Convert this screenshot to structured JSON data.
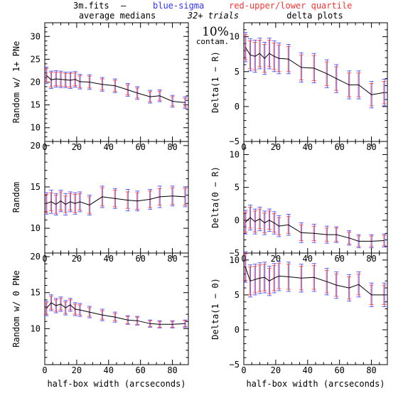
{
  "header": {
    "file": "3m.fits",
    "dash": "—",
    "legend_blue": "blue-sigma",
    "legend_red": "red-upper/lower quartile",
    "left_title": "average medians",
    "trials": "32+ trials",
    "right_title": "delta plots",
    "contam_pct": "10%",
    "contam_word": "contam."
  },
  "colors": {
    "line": "#000000",
    "blue": "#3333ff",
    "red": "#ff3333",
    "axis": "#000000"
  },
  "chart_data": [
    {
      "id": "left-top",
      "type": "line",
      "ylabel": "Random w/ 1+ PNe",
      "xlabel": "",
      "xlim": [
        0,
        90
      ],
      "ylim": [
        7,
        33
      ],
      "yticks": [
        10,
        15,
        20,
        25,
        30
      ],
      "xticks": [
        0,
        20,
        40,
        60,
        80
      ],
      "show_xtick_labels": true,
      "x": [
        1,
        4,
        7,
        10,
        13,
        16,
        19,
        22,
        28,
        36,
        44,
        52,
        58,
        66,
        72,
        80,
        88
      ],
      "y": [
        21.5,
        20.5,
        20.7,
        20.6,
        20.5,
        20.4,
        20.6,
        20.1,
        20.0,
        19.5,
        19.2,
        18.3,
        17.6,
        16.8,
        17.0,
        15.8,
        15.5
      ],
      "sigma": [
        1.8,
        1.9,
        1.8,
        1.8,
        1.7,
        1.8,
        1.7,
        1.6,
        1.6,
        1.5,
        1.5,
        1.4,
        1.4,
        1.4,
        1.3,
        1.3,
        1.3
      ],
      "quartile": [
        1.5,
        1.6,
        1.5,
        1.5,
        1.4,
        1.5,
        1.4,
        1.3,
        1.3,
        1.2,
        1.2,
        1.1,
        1.1,
        1.1,
        1.0,
        1.0,
        1.0
      ]
    },
    {
      "id": "left-mid",
      "type": "line",
      "ylabel": "Random",
      "xlabel": "",
      "xlim": [
        0,
        90
      ],
      "ylim": [
        7,
        20.5
      ],
      "yticks": [
        10,
        15,
        20
      ],
      "xticks": [
        0,
        20,
        40,
        60,
        80
      ],
      "show_xtick_labels": true,
      "x": [
        1,
        4,
        7,
        10,
        13,
        16,
        19,
        22,
        28,
        36,
        44,
        52,
        58,
        66,
        72,
        80,
        88
      ],
      "y": [
        13.0,
        13.2,
        12.9,
        13.3,
        12.9,
        13.2,
        13.0,
        13.2,
        12.8,
        13.8,
        13.6,
        13.4,
        13.3,
        13.5,
        13.8,
        13.9,
        13.8
      ],
      "sigma": [
        1.3,
        1.4,
        1.3,
        1.3,
        1.3,
        1.2,
        1.3,
        1.2,
        1.2,
        1.3,
        1.2,
        1.3,
        1.2,
        1.2,
        1.3,
        1.2,
        1.2
      ],
      "quartile": [
        1.1,
        1.1,
        1.1,
        1.1,
        1.0,
        1.0,
        1.1,
        1.0,
        1.0,
        1.1,
        1.0,
        1.0,
        1.0,
        1.0,
        1.0,
        1.0,
        1.0
      ]
    },
    {
      "id": "left-bot",
      "type": "line",
      "ylabel": "Random w/ 0 PNe",
      "xlabel": "half-box width (arcseconds)",
      "xlim": [
        0,
        90
      ],
      "ylim": [
        5,
        20.5
      ],
      "yticks": [
        10,
        15,
        20
      ],
      "xticks": [
        0,
        20,
        40,
        60,
        80
      ],
      "show_xtick_labels": true,
      "x": [
        1,
        4,
        7,
        10,
        13,
        16,
        19,
        22,
        28,
        36,
        44,
        52,
        58,
        66,
        72,
        80,
        88
      ],
      "y": [
        12.8,
        13.6,
        13.2,
        13.4,
        12.9,
        13.3,
        12.7,
        12.6,
        12.3,
        11.9,
        11.6,
        11.2,
        11.1,
        10.7,
        10.6,
        10.6,
        10.7
      ],
      "sigma": [
        1.0,
        1.1,
        1.0,
        1.0,
        1.0,
        0.9,
        0.9,
        0.9,
        0.8,
        0.8,
        0.7,
        0.6,
        0.6,
        0.5,
        0.5,
        0.5,
        0.5
      ],
      "quartile": [
        0.8,
        0.9,
        0.8,
        0.8,
        0.8,
        0.7,
        0.7,
        0.7,
        0.6,
        0.6,
        0.5,
        0.5,
        0.5,
        0.4,
        0.4,
        0.4,
        0.4
      ]
    },
    {
      "id": "right-top",
      "type": "line",
      "ylabel": "Delta(1 − R)",
      "xlabel": "",
      "xlim": [
        0,
        90
      ],
      "ylim": [
        -5,
        12
      ],
      "yticks": [
        -5,
        0,
        5,
        10
      ],
      "xticks": [
        0,
        20,
        40,
        60,
        80
      ],
      "show_xtick_labels": true,
      "x": [
        1,
        4,
        7,
        10,
        13,
        16,
        19,
        22,
        28,
        36,
        44,
        52,
        58,
        66,
        72,
        80,
        88
      ],
      "y": [
        8.5,
        7.4,
        7.2,
        7.6,
        6.9,
        7.6,
        7.2,
        6.9,
        6.8,
        5.6,
        5.5,
        4.7,
        4.0,
        3.1,
        3.1,
        1.7,
        2.0
      ],
      "sigma": [
        2.1,
        2.3,
        2.3,
        2.2,
        2.3,
        2.2,
        2.2,
        2.2,
        2.1,
        2.1,
        2.1,
        2.0,
        2.0,
        2.0,
        2.0,
        1.9,
        1.9
      ],
      "quartile": [
        1.8,
        2.0,
        2.0,
        1.9,
        2.0,
        1.9,
        1.9,
        1.9,
        1.8,
        1.8,
        1.8,
        1.7,
        1.7,
        1.7,
        1.7,
        1.6,
        1.6
      ]
    },
    {
      "id": "right-mid",
      "type": "line",
      "ylabel": "Delta(0 − R)",
      "xlabel": "",
      "xlim": [
        0,
        90
      ],
      "ylim": [
        -5,
        12
      ],
      "yticks": [
        -5,
        0,
        5,
        10
      ],
      "xticks": [
        0,
        20,
        40,
        60,
        80
      ],
      "show_xtick_labels": true,
      "x": [
        1,
        4,
        7,
        10,
        13,
        16,
        19,
        22,
        28,
        36,
        44,
        52,
        58,
        66,
        72,
        80,
        88
      ],
      "y": [
        -0.3,
        0.4,
        -0.2,
        0.2,
        -0.4,
        0.0,
        -0.4,
        -0.9,
        -0.7,
        -1.9,
        -2.0,
        -2.2,
        -2.2,
        -2.7,
        -3.2,
        -3.2,
        -3.1
      ],
      "sigma": [
        1.8,
        1.9,
        1.9,
        1.8,
        1.8,
        1.7,
        1.7,
        1.6,
        1.6,
        1.5,
        1.4,
        1.3,
        1.2,
        1.1,
        1.0,
        1.0,
        1.0
      ],
      "quartile": [
        1.5,
        1.6,
        1.6,
        1.5,
        1.5,
        1.4,
        1.4,
        1.3,
        1.3,
        1.2,
        1.1,
        1.0,
        1.0,
        0.9,
        0.8,
        0.8,
        0.8
      ]
    },
    {
      "id": "right-bot",
      "type": "line",
      "ylabel": "Delta(1 − 0)",
      "xlabel": "half-box width (arcseconds)",
      "xlim": [
        0,
        90
      ],
      "ylim": [
        -5,
        11
      ],
      "yticks": [
        -5,
        0,
        5,
        10
      ],
      "xticks": [
        0,
        20,
        40,
        60,
        80
      ],
      "show_xtick_labels": true,
      "x": [
        1,
        4,
        7,
        10,
        13,
        16,
        19,
        22,
        28,
        36,
        44,
        52,
        58,
        66,
        72,
        80,
        88
      ],
      "y": [
        9.0,
        7.0,
        7.2,
        7.4,
        7.5,
        7.0,
        7.4,
        7.7,
        7.6,
        7.4,
        7.5,
        6.9,
        6.4,
        6.0,
        6.5,
        5.0,
        5.0
      ],
      "sigma": [
        2.2,
        2.3,
        2.2,
        2.2,
        2.2,
        2.1,
        2.1,
        2.1,
        2.1,
        2.0,
        2.0,
        1.9,
        1.9,
        1.9,
        1.8,
        1.7,
        1.7
      ],
      "quartile": [
        1.9,
        2.0,
        1.9,
        1.9,
        1.9,
        1.8,
        1.8,
        1.8,
        1.8,
        1.7,
        1.7,
        1.6,
        1.6,
        1.6,
        1.5,
        1.4,
        1.4
      ]
    }
  ]
}
